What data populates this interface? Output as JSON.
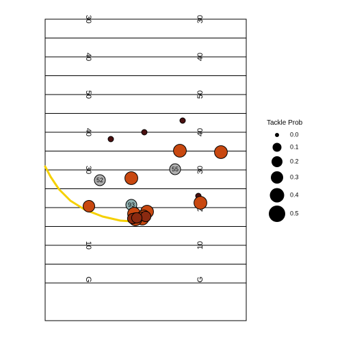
{
  "chart_data": {
    "type": "scatter",
    "field": {
      "yardlines": [
        30,
        35,
        40,
        45,
        50,
        45,
        40,
        35,
        30,
        25,
        20,
        15,
        10,
        5,
        0
      ],
      "yard_number_labels": [
        {
          "yardline": 30,
          "text": "30"
        },
        {
          "yardline": 40,
          "text": "40"
        },
        {
          "yardline": 50,
          "text": "50"
        },
        {
          "yardline": 40,
          "text": "40"
        },
        {
          "yardline": 30,
          "text": "30"
        },
        {
          "yardline": 20,
          "text": "20"
        },
        {
          "yardline": 10,
          "text": "10"
        },
        {
          "yardline": 0,
          "text": "G"
        }
      ]
    },
    "players": [
      {
        "jersey": "52",
        "team": "defense",
        "fill": "#b0b0b0",
        "tackle_prob": 0.05,
        "label_yard": 33.5,
        "lateral": 27
      },
      {
        "jersey": "55",
        "team": "defense",
        "fill": "#b0b0b0",
        "tackle_prob": 0.05,
        "label_yard": 35.5,
        "lateral": 0
      },
      {
        "jersey": "93",
        "team": "defense",
        "fill": "#90b0b0",
        "tackle_prob": 0.05,
        "label_yard": 28.2,
        "lateral": 15
      },
      {
        "jersey": "",
        "team": "offense",
        "fill": "#4a1010",
        "tackle_prob": 0.0,
        "label_yard": 43.5,
        "lateral": 0
      },
      {
        "jersey": "",
        "team": "offense",
        "fill": "#4a1010",
        "tackle_prob": 0.0,
        "label_yard": 41.7,
        "lateral": 10
      },
      {
        "jersey": "",
        "team": "offense",
        "fill": "#4a1010",
        "tackle_prob": 0.0,
        "label_yard": 40.2,
        "lateral": 22
      },
      {
        "jersey": "",
        "team": "offense",
        "fill": "#4a1010",
        "tackle_prob": 0.0,
        "label_yard": 29.5,
        "lateral": -9
      },
      {
        "jersey": "",
        "team": "offense",
        "fill": "#c84810",
        "tackle_prob": 0.3,
        "label_yard": 38.5,
        "lateral": -3
      },
      {
        "jersey": "",
        "team": "offense",
        "fill": "#c84810",
        "tackle_prob": 0.3,
        "label_yard": 38.5,
        "lateral": -14
      },
      {
        "jersey": "",
        "team": "offense",
        "fill": "#c84810",
        "tackle_prob": 0.3,
        "label_yard": 33.0,
        "lateral": 13
      },
      {
        "jersey": "",
        "team": "offense",
        "fill": "#c84810",
        "tackle_prob": 0.3,
        "label_yard": 28.0,
        "lateral": 40
      },
      {
        "jersey": "",
        "team": "offense",
        "fill": "#c84810",
        "tackle_prob": 0.25,
        "label_yard": 28.8,
        "lateral": -10
      },
      {
        "jersey": "",
        "team": "offense",
        "fill": "#c84810",
        "tackle_prob": 0.3,
        "label_yard": 27.0,
        "lateral": 13
      },
      {
        "jersey": "",
        "team": "offense",
        "fill": "#c84810",
        "tackle_prob": 0.3,
        "label_yard": 26.5,
        "lateral": 11
      },
      {
        "jersey": "",
        "team": "offense",
        "fill": "#c84810",
        "tackle_prob": 0.3,
        "label_yard": 26.5,
        "lateral": 5
      },
      {
        "jersey": "",
        "team": "offense",
        "fill": "#c84810",
        "tackle_prob": 0.3,
        "label_yard": 26.0,
        "lateral": 7
      },
      {
        "jersey": "",
        "team": "offense",
        "fill": "#c84810",
        "tackle_prob": 0.3,
        "label_yard": 25.8,
        "lateral": 2
      },
      {
        "jersey": "",
        "team": "offense",
        "fill": "#8a2a10",
        "tackle_prob": 0.2,
        "label_yard": 25.5,
        "lateral": 10
      },
      {
        "jersey": "",
        "team": "offense",
        "fill": "#8a2a10",
        "tackle_prob": 0.2,
        "label_yard": 25.5,
        "lateral": 12
      },
      {
        "jersey": "",
        "team": "offense",
        "fill": "#8a2a10",
        "tackle_prob": 0.2,
        "label_yard": 25.6,
        "lateral": 8
      }
    ],
    "ball_path": {
      "color": "#f5d000",
      "points": [
        {
          "yard": 37.0,
          "lateral": 47
        },
        {
          "yard": 33.0,
          "lateral": 44
        },
        {
          "yard": 30.5,
          "lateral": 39
        },
        {
          "yard": 28.6,
          "lateral": 33
        },
        {
          "yard": 27.3,
          "lateral": 27
        },
        {
          "yard": 26.5,
          "lateral": 21
        },
        {
          "yard": 26.2,
          "lateral": 15
        }
      ]
    },
    "legend": {
      "title": "Tackle Prob",
      "placement": "right",
      "entries": [
        {
          "label": "0.0",
          "value": 0.0
        },
        {
          "label": "0.1",
          "value": 0.1
        },
        {
          "label": "0.2",
          "value": 0.2
        },
        {
          "label": "0.3",
          "value": 0.3
        },
        {
          "label": "0.4",
          "value": 0.4
        },
        {
          "label": "0.5",
          "value": 0.5
        }
      ]
    },
    "colors": {
      "line": "#000000",
      "defense_fill": "#b0b0b0",
      "offense_dark": "#4a1010",
      "offense_orange": "#c84810"
    }
  }
}
